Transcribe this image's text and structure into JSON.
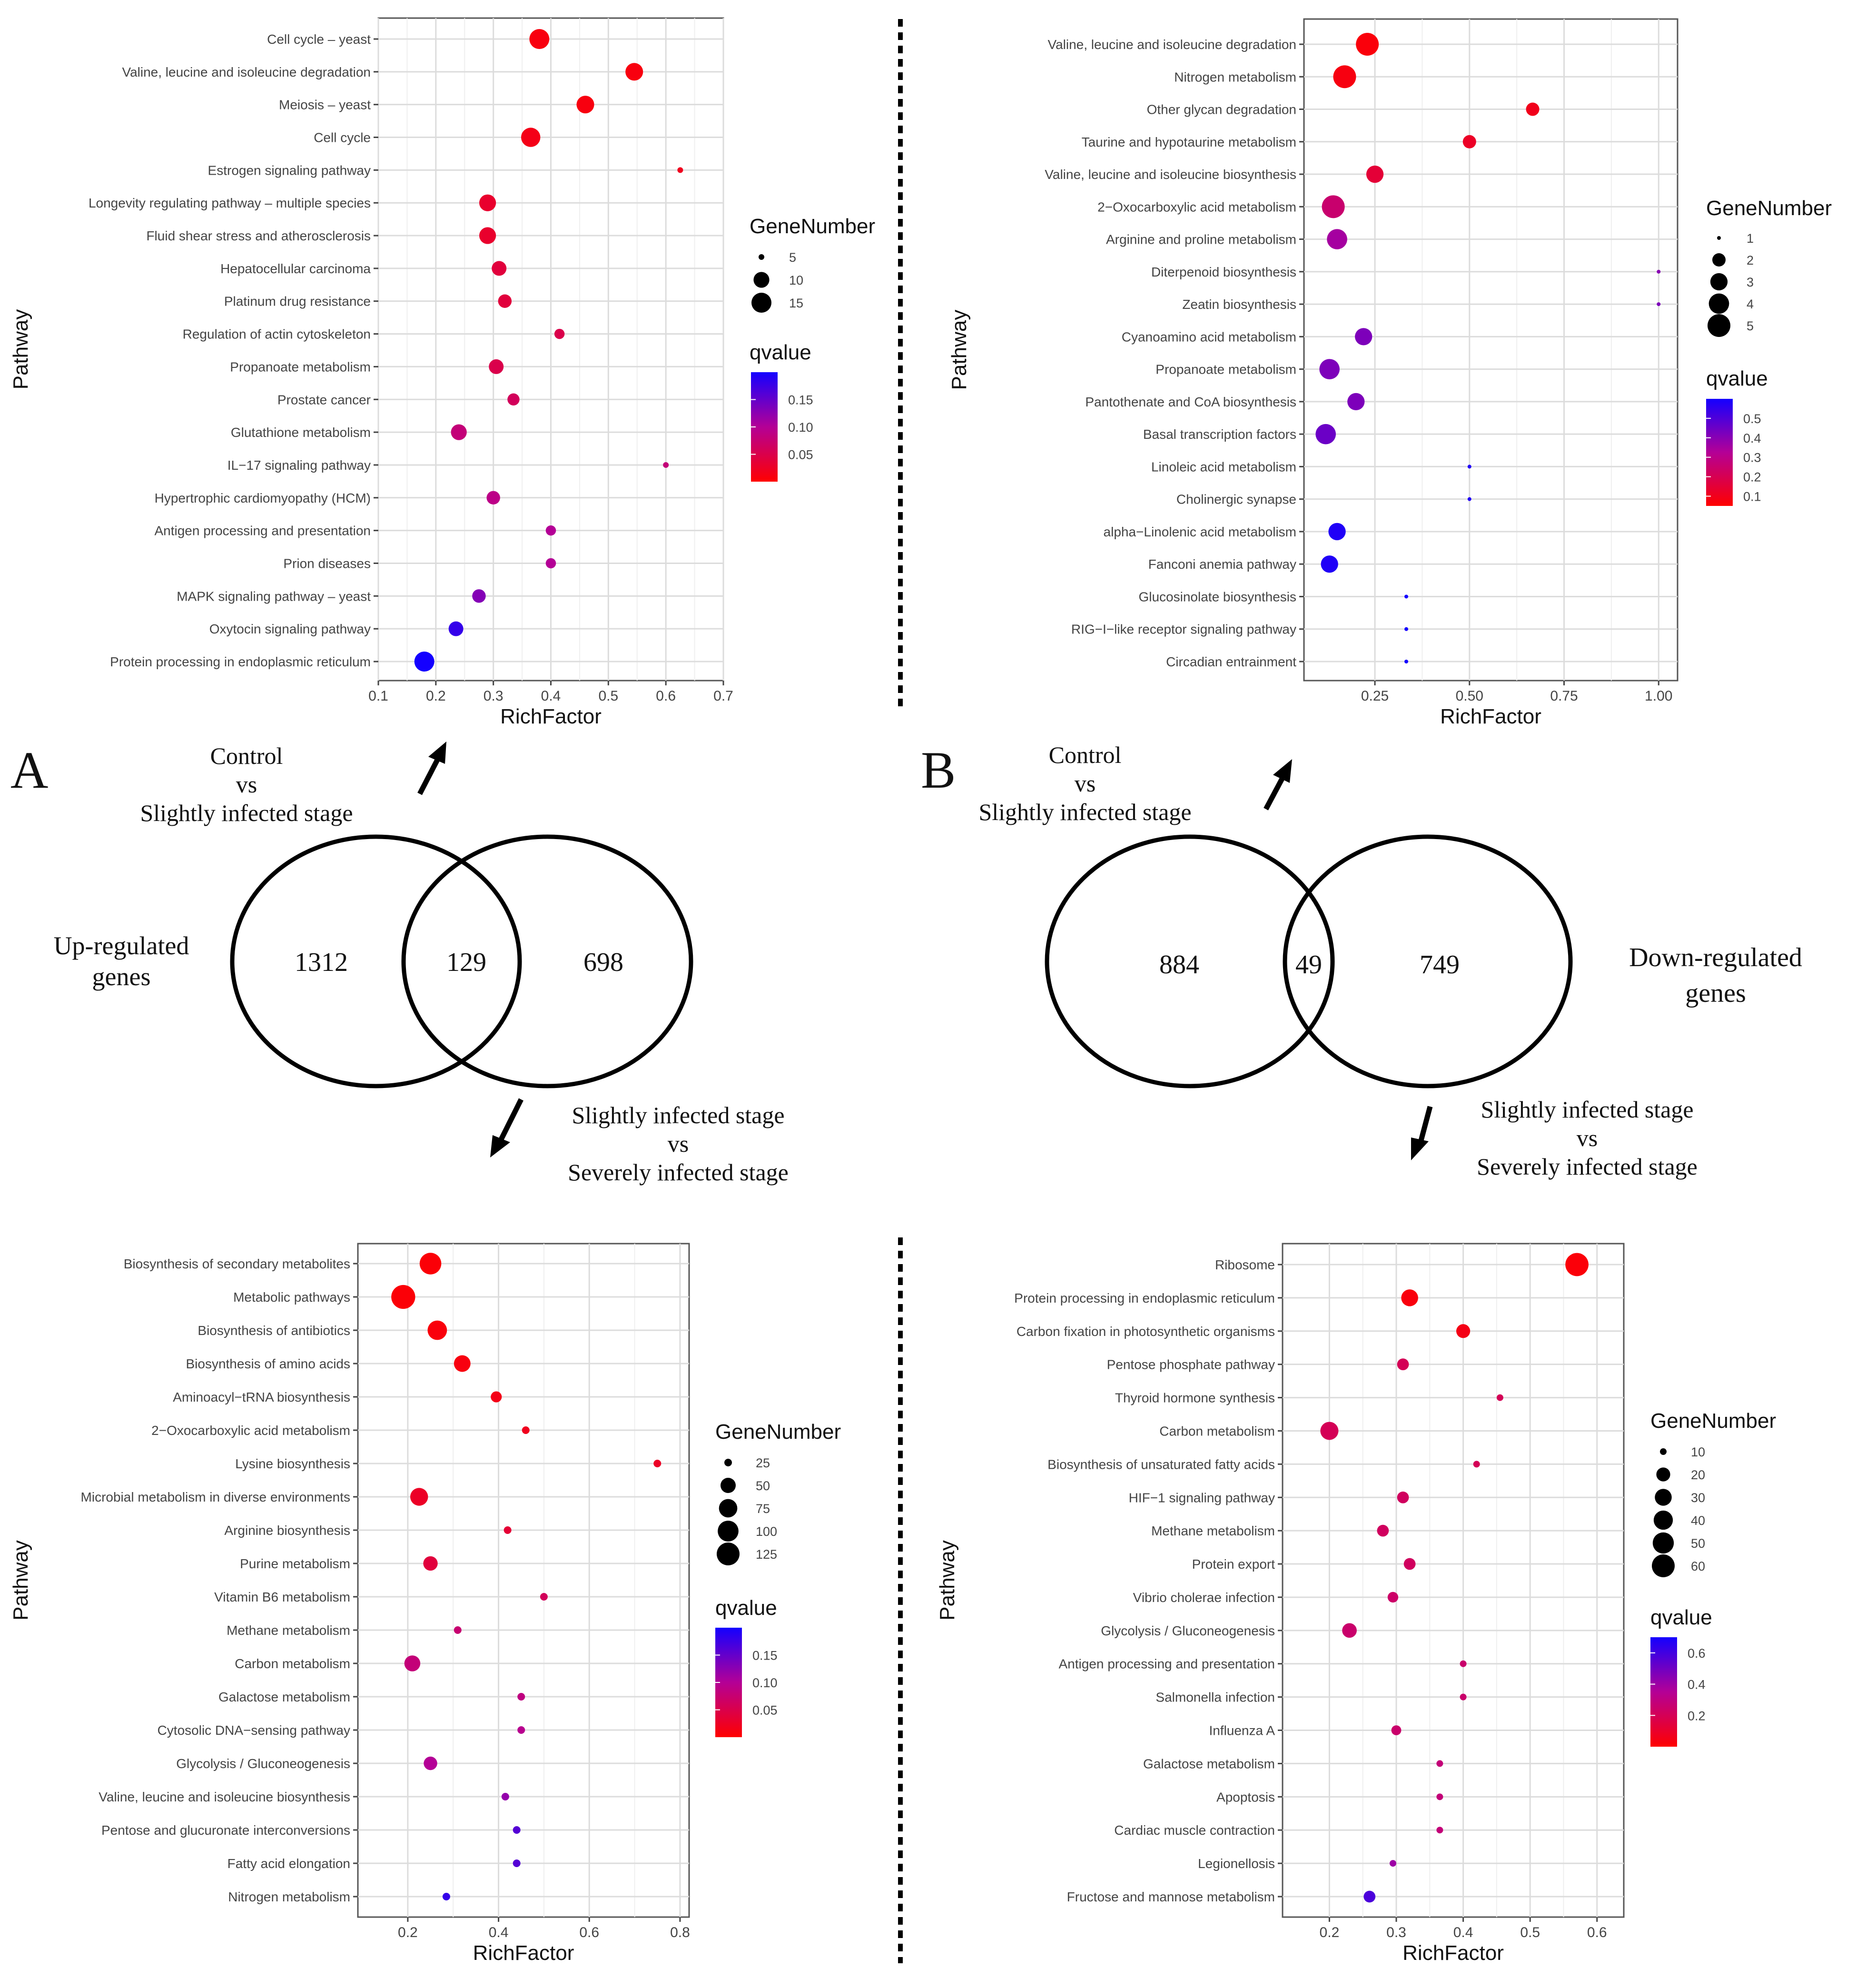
{
  "panel_labels": {
    "a": "A",
    "b": "B"
  },
  "venn": {
    "a": {
      "top_label": [
        "Control",
        "vs",
        "Slightly infected stage"
      ],
      "bottom_label": [
        "Slightly infected stage",
        "vs",
        "Severely infected stage"
      ],
      "side_label": [
        "Up-regulated",
        "genes"
      ],
      "left_only": "1312",
      "overlap": "129",
      "right_only": "698"
    },
    "b": {
      "top_label": [
        "Control",
        "vs",
        "Slightly infected stage"
      ],
      "bottom_label": [
        "Slightly infected stage",
        "vs",
        "Severely infected stage"
      ],
      "side_label": [
        "Down-regulated",
        "genes"
      ],
      "left_only": "884",
      "overlap": "49",
      "right_only": "749"
    }
  },
  "chart_data": [
    {
      "id": "tl",
      "type": "scatter",
      "xlabel": "RichFactor",
      "ylabel": "Pathway",
      "xlim": [
        0.1,
        0.7
      ],
      "xticks": [
        "0.1",
        "0.2",
        "0.3",
        "0.4",
        "0.5",
        "0.6",
        "0.7"
      ],
      "size_legend": {
        "title": "GeneNumber",
        "values": [
          5,
          10,
          15
        ],
        "labels": [
          "5",
          "10",
          "15"
        ]
      },
      "color_legend": {
        "title": "qvalue",
        "range": [
          0,
          0.2
        ],
        "ticks": [
          0.05,
          0.1,
          0.15
        ],
        "labels": [
          "0.05",
          "0.10",
          "0.15"
        ]
      },
      "points": [
        {
          "pathway": "Cell cycle – yeast",
          "rich": 0.38,
          "genes": 15,
          "q": 0.01
        },
        {
          "pathway": "Valine, leucine and isoleucine degradation",
          "rich": 0.545,
          "genes": 12,
          "q": 0.01
        },
        {
          "pathway": "Meiosis – yeast",
          "rich": 0.46,
          "genes": 12,
          "q": 0.01
        },
        {
          "pathway": "Cell cycle",
          "rich": 0.365,
          "genes": 14,
          "q": 0.015
        },
        {
          "pathway": "Estrogen signaling pathway",
          "rich": 0.625,
          "genes": 5,
          "q": 0.02
        },
        {
          "pathway": "Longevity regulating pathway – multiple species",
          "rich": 0.29,
          "genes": 11,
          "q": 0.03
        },
        {
          "pathway": "Fluid shear stress and atherosclerosis",
          "rich": 0.29,
          "genes": 11,
          "q": 0.03
        },
        {
          "pathway": "Hepatocellular carcinoma",
          "rich": 0.31,
          "genes": 9,
          "q": 0.04
        },
        {
          "pathway": "Platinum drug resistance",
          "rich": 0.32,
          "genes": 8,
          "q": 0.04
        },
        {
          "pathway": "Regulation of actin cytoskeleton",
          "rich": 0.415,
          "genes": 6,
          "q": 0.05
        },
        {
          "pathway": "Propanoate metabolism",
          "rich": 0.305,
          "genes": 9,
          "q": 0.05
        },
        {
          "pathway": "Prostate cancer",
          "rich": 0.335,
          "genes": 7,
          "q": 0.06
        },
        {
          "pathway": "Glutathione metabolism",
          "rich": 0.24,
          "genes": 10,
          "q": 0.08
        },
        {
          "pathway": "IL−17 signaling pathway",
          "rich": 0.6,
          "genes": 3,
          "q": 0.08
        },
        {
          "pathway": "Hypertrophic cardiomyopathy (HCM)",
          "rich": 0.3,
          "genes": 8,
          "q": 0.09
        },
        {
          "pathway": "Antigen processing and presentation",
          "rich": 0.4,
          "genes": 6,
          "q": 0.1
        },
        {
          "pathway": "Prion diseases",
          "rich": 0.4,
          "genes": 6,
          "q": 0.1
        },
        {
          "pathway": "MAPK signaling pathway – yeast",
          "rich": 0.275,
          "genes": 8,
          "q": 0.13
        },
        {
          "pathway": "Oxytocin signaling pathway",
          "rich": 0.235,
          "genes": 9,
          "q": 0.18
        },
        {
          "pathway": "Protein processing in endoplasmic reticulum",
          "rich": 0.18,
          "genes": 15,
          "q": 0.2
        }
      ]
    },
    {
      "id": "tr",
      "type": "scatter",
      "xlabel": "RichFactor",
      "ylabel": "Pathway",
      "xlim": [
        0.0625,
        1.05
      ],
      "xticks": [
        "0.25",
        "0.50",
        "0.75",
        "1.00"
      ],
      "xtick_values": [
        0.25,
        0.5,
        0.75,
        1.0
      ],
      "size_legend": {
        "title": "GeneNumber",
        "values": [
          1,
          2,
          3,
          4,
          5
        ],
        "labels": [
          "1",
          "2",
          "3",
          "4",
          "5"
        ]
      },
      "color_legend": {
        "title": "qvalue",
        "range": [
          0.05,
          0.6
        ],
        "ticks": [
          0.1,
          0.2,
          0.3,
          0.4,
          0.5
        ],
        "labels": [
          "0.1",
          "0.2",
          "0.3",
          "0.4",
          "0.5"
        ]
      },
      "points": [
        {
          "pathway": "Valine, leucine and isoleucine degradation",
          "rich": 0.23,
          "genes": 5,
          "q": 0.07
        },
        {
          "pathway": "Nitrogen metabolism",
          "rich": 0.17,
          "genes": 5,
          "q": 0.08
        },
        {
          "pathway": "Other glycan degradation",
          "rich": 0.667,
          "genes": 2,
          "q": 0.1
        },
        {
          "pathway": "Taurine and hypotaurine metabolism",
          "rich": 0.5,
          "genes": 2,
          "q": 0.12
        },
        {
          "pathway": "Valine, leucine and isoleucine biosynthesis",
          "rich": 0.25,
          "genes": 3,
          "q": 0.15
        },
        {
          "pathway": "2−Oxocarboxylic acid metabolism",
          "rich": 0.14,
          "genes": 5,
          "q": 0.25
        },
        {
          "pathway": "Arginine and proline metabolism",
          "rich": 0.15,
          "genes": 4,
          "q": 0.35
        },
        {
          "pathway": "Diterpenoid biosynthesis",
          "rich": 1.0,
          "genes": 1,
          "q": 0.4
        },
        {
          "pathway": "Zeatin biosynthesis",
          "rich": 1.0,
          "genes": 1,
          "q": 0.42
        },
        {
          "pathway": "Cyanoamino acid metabolism",
          "rich": 0.22,
          "genes": 3,
          "q": 0.42
        },
        {
          "pathway": "Propanoate metabolism",
          "rich": 0.13,
          "genes": 4,
          "q": 0.42
        },
        {
          "pathway": "Pantothenate and CoA biosynthesis",
          "rich": 0.2,
          "genes": 3,
          "q": 0.42
        },
        {
          "pathway": "Basal transcription factors",
          "rich": 0.12,
          "genes": 4,
          "q": 0.45
        },
        {
          "pathway": "Linoleic acid metabolism",
          "rich": 0.5,
          "genes": 1,
          "q": 0.58
        },
        {
          "pathway": "Cholinergic synapse",
          "rich": 0.5,
          "genes": 1,
          "q": 0.58
        },
        {
          "pathway": "alpha−Linolenic acid metabolism",
          "rich": 0.15,
          "genes": 3,
          "q": 0.58
        },
        {
          "pathway": "Fanconi anemia pathway",
          "rich": 0.13,
          "genes": 3,
          "q": 0.58
        },
        {
          "pathway": "Glucosinolate biosynthesis",
          "rich": 0.333,
          "genes": 1,
          "q": 0.6
        },
        {
          "pathway": "RIG−I−like receptor signaling pathway",
          "rich": 0.333,
          "genes": 1,
          "q": 0.6
        },
        {
          "pathway": "Circadian entrainment",
          "rich": 0.333,
          "genes": 1,
          "q": 0.6
        }
      ]
    },
    {
      "id": "bl",
      "type": "scatter",
      "xlabel": "RichFactor",
      "ylabel": "Pathway",
      "xlim": [
        0.09,
        0.82
      ],
      "xticks": [
        "0.2",
        "0.4",
        "0.6",
        "0.8"
      ],
      "xtick_values": [
        0.2,
        0.4,
        0.6,
        0.8
      ],
      "size_legend": {
        "title": "GeneNumber",
        "values": [
          25,
          50,
          75,
          100,
          125
        ],
        "labels": [
          "25",
          "50",
          "75",
          "100",
          "125"
        ]
      },
      "color_legend": {
        "title": "qvalue",
        "range": [
          0,
          0.2
        ],
        "ticks": [
          0.05,
          0.1,
          0.15
        ],
        "labels": [
          "0.05",
          "0.10",
          "0.15"
        ]
      },
      "points": [
        {
          "pathway": "Biosynthesis of secondary metabolites",
          "rich": 0.25,
          "genes": 110,
          "q": 0.005
        },
        {
          "pathway": "Metabolic pathways",
          "rich": 0.19,
          "genes": 140,
          "q": 0.005
        },
        {
          "pathway": "Biosynthesis of antibiotics",
          "rich": 0.265,
          "genes": 85,
          "q": 0.008
        },
        {
          "pathway": "Biosynthesis of amino acids",
          "rich": 0.32,
          "genes": 60,
          "q": 0.01
        },
        {
          "pathway": "Aminoacyl−tRNA biosynthesis",
          "rich": 0.395,
          "genes": 30,
          "q": 0.015
        },
        {
          "pathway": "2−Oxocarboxylic acid metabolism",
          "rich": 0.46,
          "genes": 25,
          "q": 0.02
        },
        {
          "pathway": "Lysine biosynthesis",
          "rich": 0.75,
          "genes": 10,
          "q": 0.025
        },
        {
          "pathway": "Microbial metabolism in diverse environments",
          "rich": 0.225,
          "genes": 70,
          "q": 0.025
        },
        {
          "pathway": "Arginine biosynthesis",
          "rich": 0.42,
          "genes": 15,
          "q": 0.035
        },
        {
          "pathway": "Purine metabolism",
          "rich": 0.25,
          "genes": 45,
          "q": 0.04
        },
        {
          "pathway": "Vitamin B6 metabolism",
          "rich": 0.5,
          "genes": 8,
          "q": 0.06
        },
        {
          "pathway": "Methane metabolism",
          "rich": 0.31,
          "genes": 20,
          "q": 0.075
        },
        {
          "pathway": "Carbon metabolism",
          "rich": 0.21,
          "genes": 55,
          "q": 0.08
        },
        {
          "pathway": "Galactose metabolism",
          "rich": 0.45,
          "genes": 10,
          "q": 0.085
        },
        {
          "pathway": "Cytosolic DNA−sensing pathway",
          "rich": 0.45,
          "genes": 10,
          "q": 0.095
        },
        {
          "pathway": "Glycolysis / Gluconeogenesis",
          "rich": 0.25,
          "genes": 40,
          "q": 0.1
        },
        {
          "pathway": "Valine, leucine and isoleucine biosynthesis",
          "rich": 0.415,
          "genes": 10,
          "q": 0.12
        },
        {
          "pathway": "Pentose and glucuronate interconversions",
          "rich": 0.44,
          "genes": 8,
          "q": 0.16
        },
        {
          "pathway": "Fatty acid elongation",
          "rich": 0.44,
          "genes": 8,
          "q": 0.16
        },
        {
          "pathway": "Nitrogen metabolism",
          "rich": 0.285,
          "genes": 15,
          "q": 0.18
        }
      ]
    },
    {
      "id": "br",
      "type": "scatter",
      "xlabel": "RichFactor",
      "ylabel": "Pathway",
      "xlim": [
        0.13,
        0.64
      ],
      "xticks": [
        "0.2",
        "0.3",
        "0.4",
        "0.5",
        "0.6"
      ],
      "xtick_values": [
        0.2,
        0.3,
        0.4,
        0.5,
        0.6
      ],
      "size_legend": {
        "title": "GeneNumber",
        "values": [
          10,
          20,
          30,
          40,
          50,
          60
        ],
        "labels": [
          "10",
          "20",
          "30",
          "40",
          "50",
          "60"
        ]
      },
      "color_legend": {
        "title": "qvalue",
        "range": [
          0,
          0.7
        ],
        "ticks": [
          0.2,
          0.4,
          0.6
        ],
        "labels": [
          "0.2",
          "0.4",
          "0.6"
        ]
      },
      "points": [
        {
          "pathway": "Ribosome",
          "rich": 0.57,
          "genes": 62,
          "q": 0.02
        },
        {
          "pathway": "Protein processing in endoplasmic reticulum",
          "rich": 0.32,
          "genes": 30,
          "q": 0.03
        },
        {
          "pathway": "Carbon fixation in photosynthetic organisms",
          "rich": 0.4,
          "genes": 20,
          "q": 0.05
        },
        {
          "pathway": "Pentose phosphate pathway",
          "rich": 0.31,
          "genes": 15,
          "q": 0.2
        },
        {
          "pathway": "Thyroid hormone synthesis",
          "rich": 0.455,
          "genes": 8,
          "q": 0.2
        },
        {
          "pathway": "Carbon metabolism",
          "rich": 0.2,
          "genes": 35,
          "q": 0.2
        },
        {
          "pathway": "Biosynthesis of unsaturated fatty acids",
          "rich": 0.42,
          "genes": 9,
          "q": 0.2
        },
        {
          "pathway": "HIF−1 signaling pathway",
          "rich": 0.31,
          "genes": 15,
          "q": 0.22
        },
        {
          "pathway": "Methane metabolism",
          "rich": 0.28,
          "genes": 15,
          "q": 0.22
        },
        {
          "pathway": "Protein export",
          "rich": 0.32,
          "genes": 15,
          "q": 0.22
        },
        {
          "pathway": "Vibrio cholerae infection",
          "rich": 0.295,
          "genes": 13,
          "q": 0.24
        },
        {
          "pathway": "Glycolysis / Gluconeogenesis",
          "rich": 0.23,
          "genes": 22,
          "q": 0.25
        },
        {
          "pathway": "Antigen processing and presentation",
          "rich": 0.4,
          "genes": 5,
          "q": 0.25
        },
        {
          "pathway": "Salmonella infection",
          "rich": 0.4,
          "genes": 5,
          "q": 0.25
        },
        {
          "pathway": "Influenza A",
          "rich": 0.3,
          "genes": 12,
          "q": 0.25
        },
        {
          "pathway": "Galactose metabolism",
          "rich": 0.365,
          "genes": 6,
          "q": 0.28
        },
        {
          "pathway": "Apoptosis",
          "rich": 0.365,
          "genes": 6,
          "q": 0.28
        },
        {
          "pathway": "Cardiac muscle contraction",
          "rich": 0.365,
          "genes": 6,
          "q": 0.28
        },
        {
          "pathway": "Legionellosis",
          "rich": 0.295,
          "genes": 10,
          "q": 0.4
        },
        {
          "pathway": "Fructose and mannose metabolism",
          "rich": 0.26,
          "genes": 15,
          "q": 0.58
        }
      ]
    }
  ]
}
